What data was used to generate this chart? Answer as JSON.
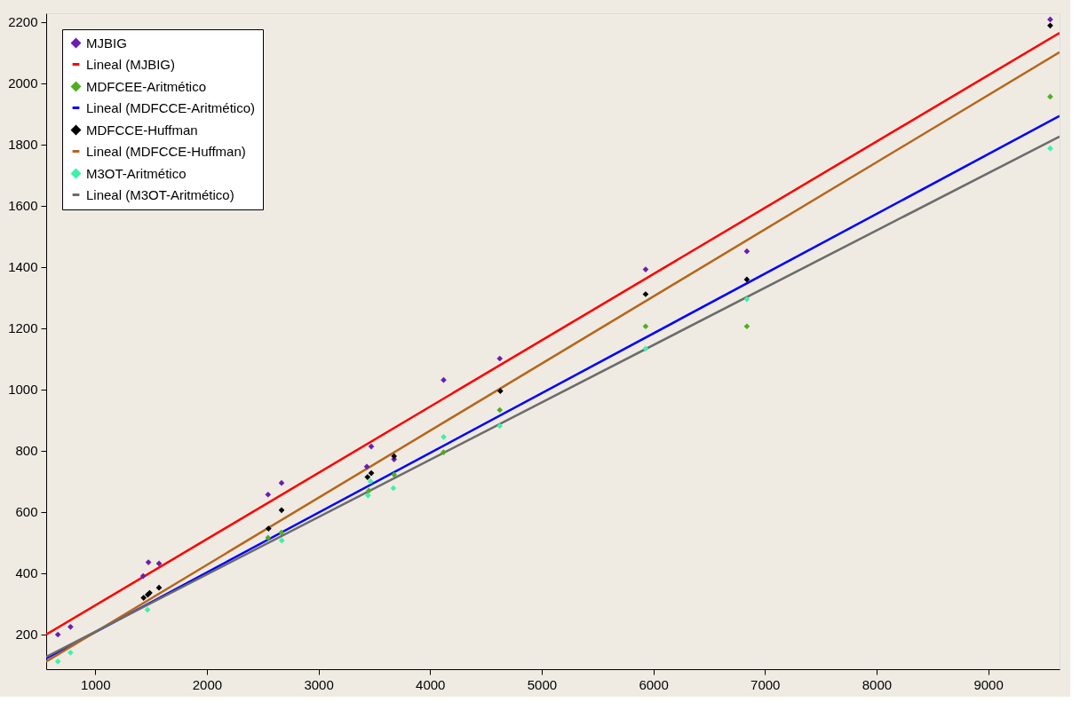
{
  "chart_data": {
    "type": "scatter",
    "legend": "top left",
    "grid": false,
    "xlim": [
      560,
      9640
    ],
    "xticks": [
      1000,
      2000,
      3000,
      4000,
      5000,
      6000,
      7000,
      8000,
      9000
    ],
    "ylim": [
      87,
      2228
    ],
    "yticks": [
      200,
      400,
      600,
      800,
      1000,
      1200,
      1400,
      1600,
      1800,
      2000,
      2200
    ],
    "series": [
      {
        "name": "MJBIG",
        "marker": "diamond",
        "color": "#6a1fb0",
        "x": [
          665,
          778,
          1429,
          1476,
          1571,
          2548,
          2669,
          3433,
          3473,
          3677,
          4121,
          4624,
          5931,
          6838,
          9556
        ],
        "values": [
          200,
          225,
          391,
          436,
          432,
          657,
          695,
          748,
          814,
          772,
          1031,
          1101,
          1392,
          1451,
          2208
        ]
      },
      {
        "name": " Lineal (MJBIG)",
        "type": "line",
        "marker": "none",
        "color": "#ff0000",
        "x": [
          560,
          9640
        ],
        "values": [
          200,
          2164
        ]
      },
      {
        "name": "MDFCEE-Aritmético",
        "marker": "diamond",
        "color": "#4fae1e",
        "x": [
          2548,
          2667,
          3452,
          3677,
          4121,
          4624,
          5931,
          6838,
          9556
        ],
        "values": [
          516,
          533,
          670,
          722,
          795,
          933,
          1206,
          1206,
          1956
        ]
      },
      {
        "name": " Lineal (MDFCCE-Aritmético)",
        "type": "line",
        "marker": "none",
        "color": "#0000ff",
        "x": [
          560,
          9640
        ],
        "values": [
          122,
          1893
        ]
      },
      {
        "name": "MDFCCE-Huffman",
        "marker": "diamond",
        "color": "#000000",
        "x": [
          1433,
          1470,
          1487,
          1571,
          2552,
          2669,
          3439,
          3473,
          3677,
          4629,
          5931,
          6838,
          9556
        ],
        "values": [
          320,
          330,
          336,
          353,
          546,
          606,
          714,
          727,
          782,
          995,
          1311,
          1359,
          2188
        ]
      },
      {
        "name": " Lineal (MDFCCE-Huffman)",
        "type": "line",
        "marker": "none",
        "color": "#b8651a",
        "x": [
          560,
          9640
        ],
        "values": [
          112,
          2101
        ]
      },
      {
        "name": "M3OT-Aritmético",
        "marker": "diamond",
        "color": "#3cf2a8",
        "x": [
          665,
          778,
          1468,
          2671,
          3444,
          3466,
          3671,
          4121,
          4624,
          5931,
          6838,
          9556
        ],
        "values": [
          112,
          141,
          281,
          507,
          654,
          700,
          678,
          845,
          881,
          1133,
          1295,
          1787
        ]
      },
      {
        "name": " Lineal (M3OT-Aritmético)",
        "type": "line",
        "marker": "none",
        "color": "#6b6b6b",
        "x": [
          560,
          9640
        ],
        "values": [
          127,
          1826
        ]
      }
    ]
  }
}
